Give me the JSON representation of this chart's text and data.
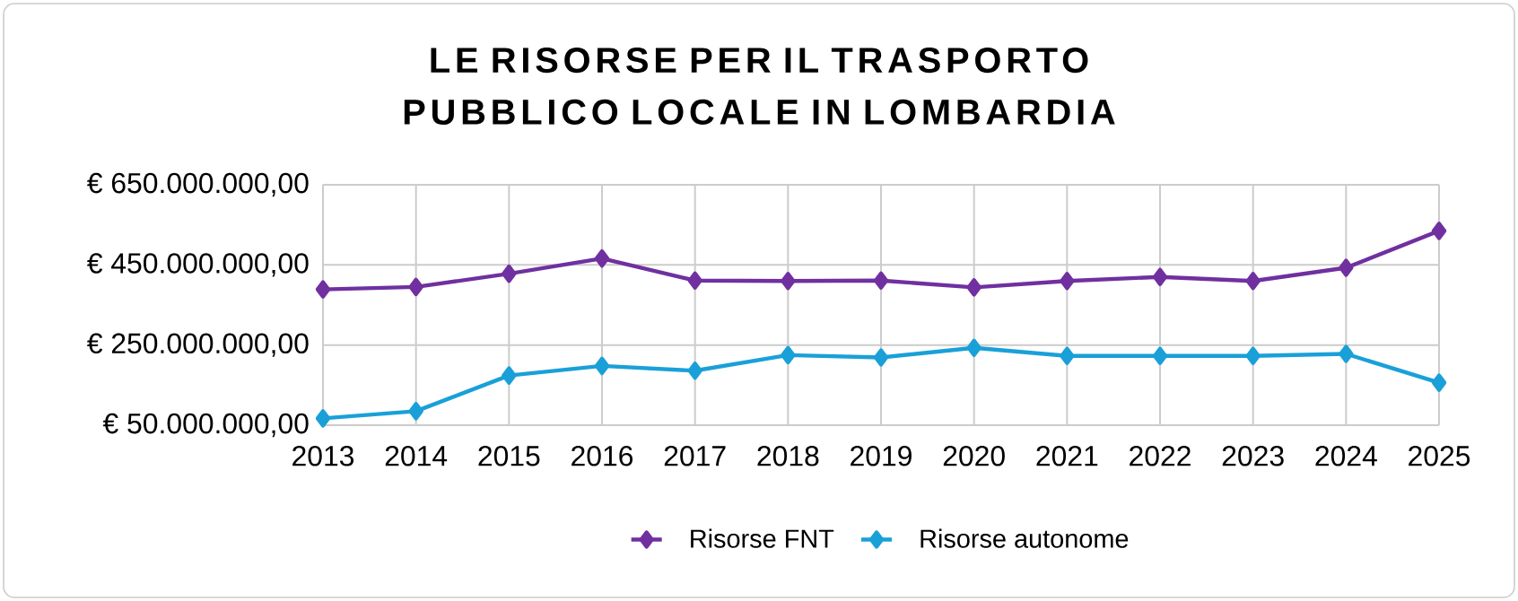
{
  "chart_data": {
    "type": "line",
    "title": "LE RISORSE PER IL TRASPORTO PUBBLICO LOCALE IN LOMBARDIA",
    "categories": [
      "2013",
      "2014",
      "2015",
      "2016",
      "2017",
      "2018",
      "2019",
      "2020",
      "2021",
      "2022",
      "2023",
      "2024",
      "2025"
    ],
    "series": [
      {
        "name": "Risorse FNT",
        "color": "#7030a0",
        "values": [
          389000000,
          395000000,
          428000000,
          466000000,
          411000000,
          410000000,
          411000000,
          394000000,
          410000000,
          420000000,
          410000000,
          443000000,
          535000000
        ]
      },
      {
        "name": "Risorse autonome",
        "color": "#1aa0d8",
        "values": [
          67000000,
          85000000,
          174000000,
          198000000,
          186000000,
          225000000,
          219000000,
          243000000,
          223000000,
          223000000,
          223000000,
          228000000,
          156000000
        ]
      }
    ],
    "ylim": [
      50000000,
      650000000
    ],
    "yticks": [
      {
        "value": 50000000,
        "label": "€ 50.000.000,00"
      },
      {
        "value": 250000000,
        "label": "€ 250.000.000,00"
      },
      {
        "value": 450000000,
        "label": "€ 450.000.000,00"
      },
      {
        "value": 650000000,
        "label": "€ 650.000.000,00"
      }
    ],
    "grid": true,
    "legend": "bottom",
    "marker": "diamond",
    "line_style": "solid"
  }
}
